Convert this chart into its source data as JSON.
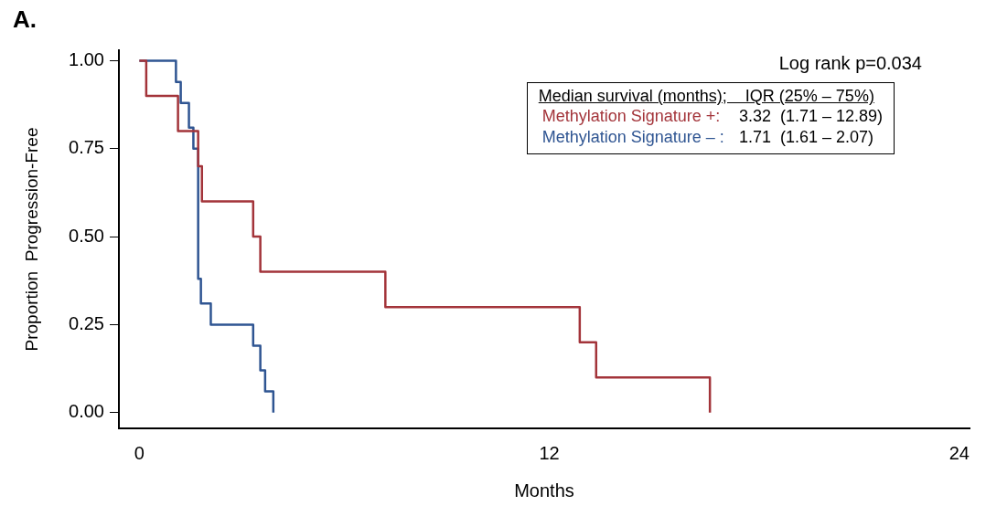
{
  "chart_data": {
    "type": "step",
    "xlabel": "Months",
    "ylabel": "Proportion  Progression-Free",
    "legend": "top right",
    "legend_title": "Median survival (months);    IQR (25% – 75%)",
    "annotations": [
      "A.",
      "Log rank p=0.034",
      "3.32  (1.71 – 12.89)",
      "1.71  (1.61 – 2.07)"
    ],
    "xlim": [
      -0.6,
      24.3
    ],
    "xticks": [
      0,
      12,
      24
    ],
    "ylim": [
      -0.045,
      1.03
    ],
    "yticks": [
      {
        "value": 0,
        "label": "0.00"
      },
      {
        "value": 0.25,
        "label": "0.25"
      },
      {
        "value": 0.5,
        "label": "0.50"
      },
      {
        "value": 0.75,
        "label": "0.75"
      },
      {
        "value": 1,
        "label": "1.00"
      }
    ],
    "grid": false,
    "marker": "none",
    "series": [
      {
        "name": "Methylation Signature +:",
        "color": "#a3343a",
        "x": [
          0,
          0.2,
          1.13,
          1.72,
          1.83,
          3.33,
          3.54,
          7.2,
          12.89,
          13.37,
          16.7
        ],
        "values": [
          1,
          0.9,
          0.8,
          0.7,
          0.6,
          0.5,
          0.4,
          0.3,
          0.2,
          0.1,
          0
        ]
      },
      {
        "name": "Methylation Signature – :",
        "color": "#2f5592",
        "x": [
          0,
          1.07,
          1.21,
          1.45,
          1.58,
          1.72,
          1.8,
          2.09,
          3.33,
          3.54,
          3.68,
          3.92
        ],
        "values": [
          1,
          0.94,
          0.88,
          0.81,
          0.75,
          0.38,
          0.31,
          0.25,
          0.19,
          0.12,
          0.06,
          0
        ]
      }
    ]
  }
}
